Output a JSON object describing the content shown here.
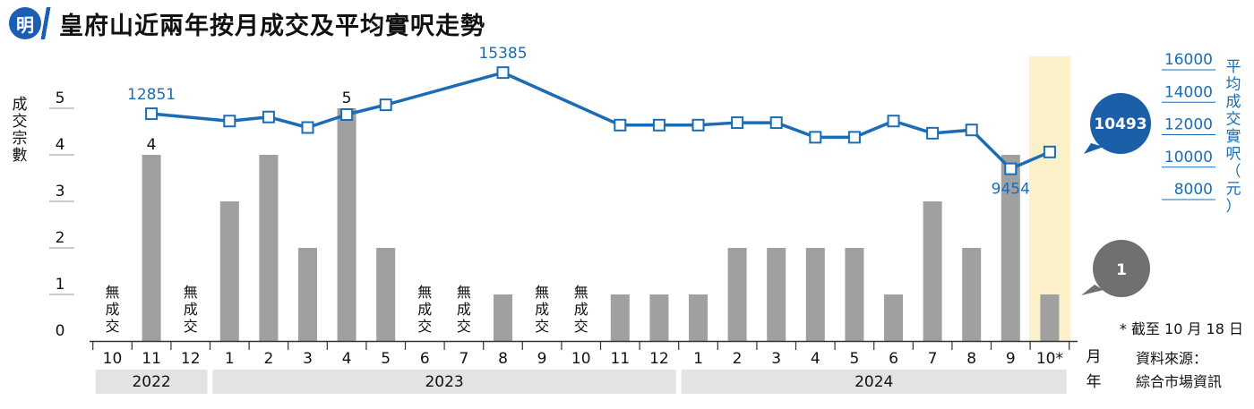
{
  "header": {
    "logo": "明",
    "title": "皇府山近兩年按月成交及平均實呎走勢"
  },
  "chart_data": {
    "type": "bar",
    "categories": [
      "10",
      "11",
      "12",
      "1",
      "2",
      "3",
      "4",
      "5",
      "6",
      "7",
      "8",
      "9",
      "10",
      "11",
      "12",
      "1",
      "2",
      "3",
      "4",
      "5",
      "6",
      "7",
      "8",
      "9",
      "10*"
    ],
    "year_groups": [
      {
        "label": "2022",
        "start": 0,
        "end": 2
      },
      {
        "label": "2023",
        "start": 3,
        "end": 14
      },
      {
        "label": "2024",
        "start": 15,
        "end": 24
      }
    ],
    "series": [
      {
        "name": "成交宗數",
        "kind": "bar",
        "axis": "left",
        "values": [
          0,
          4,
          0,
          3,
          4,
          2,
          5,
          2,
          0,
          0,
          1,
          0,
          0,
          1,
          1,
          1,
          2,
          2,
          2,
          2,
          1,
          3,
          2,
          4,
          1
        ]
      },
      {
        "name": "平均成交實呎（元）",
        "kind": "line",
        "axis": "right",
        "values": [
          null,
          12851,
          null,
          12400,
          12650,
          12000,
          12800,
          13400,
          null,
          null,
          15385,
          null,
          null,
          12150,
          12150,
          12150,
          12300,
          12300,
          11400,
          11400,
          12400,
          11650,
          11850,
          9454,
          10493
        ]
      }
    ],
    "no_deal_label": "無成交",
    "bar_labels": [
      {
        "index": 1,
        "text": "4"
      },
      {
        "index": 6,
        "text": "5"
      }
    ],
    "line_labels": [
      {
        "index": 1,
        "text": "12851"
      },
      {
        "index": 10,
        "text": "15385"
      },
      {
        "index": 23,
        "text": "9454"
      }
    ],
    "left_axis": {
      "label": "成交宗數",
      "ylim": [
        0,
        5
      ],
      "ticks": [
        "0",
        "1",
        "2",
        "3",
        "4",
        "5"
      ]
    },
    "right_axis": {
      "label": "平均成交實呎（元）",
      "ylim": [
        8000,
        16000
      ],
      "ticks": [
        "8000",
        "10000",
        "12000",
        "14000",
        "16000"
      ]
    },
    "callouts": {
      "line": "10493",
      "bar": "1"
    },
    "month_unit": "月",
    "year_unit": "年",
    "footnote": "* 截至 10 月 18 日",
    "source_label": "資料來源：",
    "source_name": "綜合市場資訊",
    "colors": {
      "bar": "#a0a0a0",
      "line": "#1a6db5",
      "line_text": "#1a6db5",
      "highlight": "#fbf0c9",
      "year_band": "#e3e3e3",
      "callout_blue": "#1a5fa8",
      "callout_gray": "#707070"
    }
  }
}
